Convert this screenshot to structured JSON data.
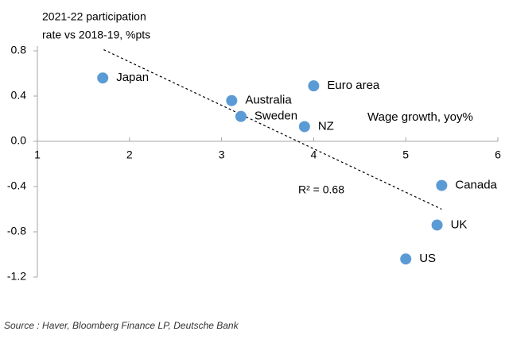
{
  "chart_data": {
    "type": "scatter",
    "title": [
      "2021-22 participation",
      "rate vs 2018-19, %pts"
    ],
    "x_label": "Wage growth, yoy%",
    "annotation": "R² = 0.68",
    "source": "Source : Haver, Bloomberg Finance LP, Deutsche Bank",
    "labels": [
      "Japan",
      "Australia",
      "Sweden",
      "Euro area",
      "NZ",
      "Canada",
      "UK",
      "US"
    ],
    "x": [
      1.71,
      3.11,
      3.21,
      4.0,
      3.9,
      5.39,
      5.34,
      5.0
    ],
    "y": [
      0.56,
      0.36,
      0.22,
      0.49,
      0.13,
      -0.39,
      -0.74,
      -1.04
    ],
    "color": "#5b9bd5",
    "trendline": {
      "x": [
        1.72,
        5.39
      ],
      "y": [
        0.81,
        -0.6
      ]
    },
    "xlim": [
      1,
      6
    ],
    "xticks": [
      1,
      2,
      3,
      4,
      5,
      6
    ],
    "ylim": [
      -1.2,
      0.8
    ],
    "yticks": [
      0.8,
      0.4,
      {
        "value": 0,
        "label": "0.0"
      },
      -0.4,
      -0.8,
      -1.2
    ]
  }
}
